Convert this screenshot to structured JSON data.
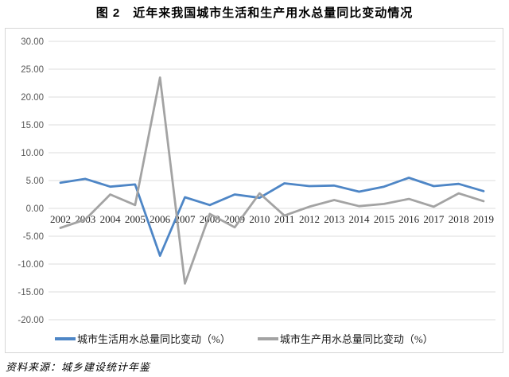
{
  "title": "图 2　近年来我国城市生活和生产用水总量同比变动情况",
  "source_note": "资料来源：城乡建设统计年鉴",
  "colors": {
    "domestic_line": "#4E86C6",
    "production_line": "#A3A3A3",
    "gridline": "#DCDCDC",
    "chart_border": "#D6D6D6",
    "ytick_text": "#595959",
    "xtick_text": "#262626"
  },
  "legend": [
    {
      "label": "城市生活用水总量同比变动（%）",
      "color": "#4E86C6"
    },
    {
      "label": "城市生产用水总量同比变动（%）",
      "color": "#A3A3A3"
    }
  ],
  "chart_data": {
    "type": "line",
    "x": [
      "2002",
      "2003",
      "2004",
      "2005",
      "2006",
      "2007",
      "2008",
      "2009",
      "2010",
      "2011",
      "2012",
      "2013",
      "2014",
      "2015",
      "2016",
      "2017",
      "2018",
      "2019"
    ],
    "series": [
      {
        "name": "城市生活用水总量同比变动（%）",
        "color": "#4E86C6",
        "values": [
          4.6,
          5.3,
          3.9,
          4.3,
          -8.5,
          2.0,
          0.6,
          2.5,
          1.9,
          4.5,
          4.0,
          4.1,
          3.0,
          3.9,
          5.5,
          4.0,
          4.4,
          3.1
        ]
      },
      {
        "name": "城市生产用水总量同比变动（%）",
        "color": "#A3A3A3",
        "values": [
          -3.5,
          -2.0,
          2.5,
          0.6,
          23.5,
          -13.5,
          -1.0,
          -3.4,
          2.7,
          -1.3,
          0.3,
          1.5,
          0.4,
          0.8,
          1.7,
          0.3,
          2.7,
          1.3
        ]
      }
    ],
    "ylim": [
      -20,
      30
    ],
    "ytick_step": 5,
    "yticks": [
      "30.00",
      "25.00",
      "20.00",
      "15.00",
      "10.00",
      "5.00",
      "0.00",
      "-5.00",
      "-10.00",
      "-15.00",
      "-20.00"
    ],
    "grid": true,
    "legend_position": "bottom",
    "xlabel": "",
    "ylabel": ""
  }
}
